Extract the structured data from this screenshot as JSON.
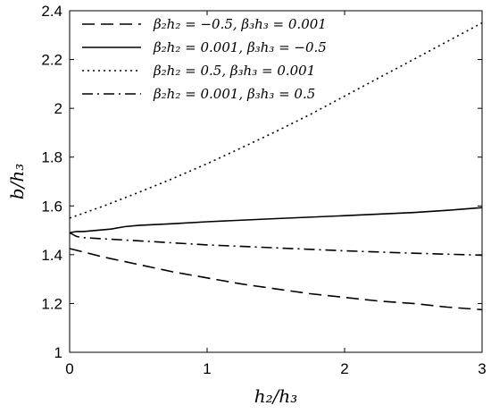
{
  "chart_data": {
    "type": "line",
    "title": "",
    "xlabel": "h₂/h₃",
    "ylabel": "b/h₃",
    "xlim": [
      0,
      3
    ],
    "ylim": [
      1,
      2.4
    ],
    "x_ticks": [
      "0",
      "1",
      "2",
      "3"
    ],
    "y_ticks": [
      "1",
      "1.2",
      "1.4",
      "1.6",
      "1.8",
      "2",
      "2.2",
      "2.4"
    ],
    "grid": false,
    "legend_position": "top-left",
    "series": [
      {
        "name": "β₂h₂ = −0.5, β₃h₃ = 0.001",
        "style": "dashed",
        "color": "#000000",
        "x": [
          0,
          0.25,
          0.5,
          0.75,
          1.0,
          1.25,
          1.5,
          1.75,
          2.0,
          2.25,
          2.5,
          2.75,
          3.0
        ],
        "y": [
          1.425,
          1.39,
          1.36,
          1.33,
          1.305,
          1.28,
          1.26,
          1.24,
          1.225,
          1.21,
          1.2,
          1.185,
          1.175
        ]
      },
      {
        "name": "β₂h₂ = 0.001, β₃h₃ = −0.5",
        "style": "solid",
        "color": "#000000",
        "x": [
          0,
          0.05,
          0.1,
          0.2,
          0.3,
          0.4,
          0.5,
          0.75,
          1.0,
          1.5,
          2.0,
          2.5,
          2.75,
          3.0
        ],
        "y": [
          1.49,
          1.495,
          1.495,
          1.5,
          1.505,
          1.515,
          1.52,
          1.527,
          1.535,
          1.548,
          1.56,
          1.573,
          1.582,
          1.593
        ]
      },
      {
        "name": "β₂h₂ = 0.5, β₃h₃ = 0.001",
        "style": "dotted",
        "color": "#000000",
        "x": [
          0,
          0.25,
          0.5,
          0.75,
          1.0,
          1.25,
          1.5,
          1.75,
          2.0,
          2.25,
          2.5,
          2.75,
          3.0
        ],
        "y": [
          1.55,
          1.6,
          1.655,
          1.712,
          1.773,
          1.838,
          1.905,
          1.975,
          2.05,
          2.125,
          2.2,
          2.275,
          2.35
        ]
      },
      {
        "name": "β₂h₂ = 0.001, β₃h₃ = 0.5",
        "style": "dashdot",
        "color": "#000000",
        "x": [
          0,
          0.05,
          0.1,
          0.25,
          0.5,
          1.0,
          1.5,
          2.0,
          2.5,
          3.0
        ],
        "y": [
          1.49,
          1.475,
          1.47,
          1.465,
          1.457,
          1.44,
          1.428,
          1.416,
          1.406,
          1.398
        ]
      }
    ]
  }
}
